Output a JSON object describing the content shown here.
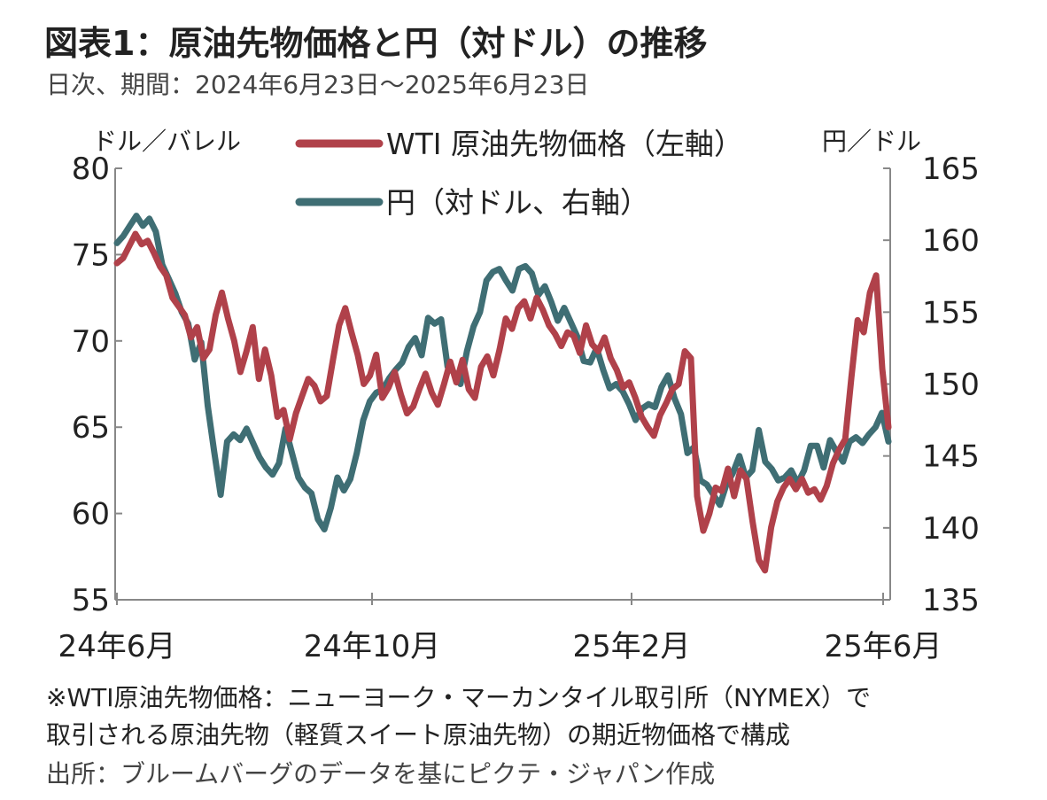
{
  "header": {
    "title": "図表1：原油先物価格と円（対ドル）の推移",
    "subtitle": "日次、期間：2024年6月23日～2025年6月23日"
  },
  "units": {
    "left": "ドル／バレル",
    "right": "円／ドル"
  },
  "notes": {
    "line1": "※WTI原油先物価格：ニューヨーク・マーカンタイル取引所（NYMEX）で",
    "line2": "取引される原油先物（軽質スイート原油先物）の期近物価格で構成",
    "line3": "出所：ブルームバーグのデータを基にピクテ・ジャパン作成"
  },
  "colors": {
    "wti": "#b0414a",
    "jpy": "#3f6e74",
    "axis": "#888888"
  },
  "chart_data": {
    "type": "line",
    "x_ticks": [
      "24年6月",
      "24年10月",
      "25年2月",
      "25年6月"
    ],
    "y_left": {
      "ticks": [
        80,
        75,
        70,
        65,
        60,
        55
      ],
      "lim": [
        55,
        80
      ]
    },
    "y_right": {
      "ticks": [
        165,
        160,
        155,
        150,
        145,
        140,
        135
      ],
      "lim": [
        135,
        165
      ]
    },
    "series": [
      {
        "name": "WTI 原油先物価格（左軸）",
        "axis": "left",
        "values": [
          74.5,
          74.8,
          75.5,
          76.2,
          75.6,
          75.8,
          75.1,
          74.3,
          73.8,
          72.5,
          72.0,
          71.5,
          70.2,
          70.8,
          69.0,
          69.5,
          71.5,
          72.8,
          71.3,
          70.0,
          68.2,
          69.4,
          70.8,
          67.8,
          69.5,
          68.0,
          65.6,
          66.0,
          64.3,
          65.8,
          66.8,
          67.8,
          67.4,
          66.5,
          66.8,
          68.9,
          70.9,
          71.9,
          70.5,
          69.2,
          67.5,
          68.0,
          69.2,
          66.7,
          67.3,
          68.2,
          66.9,
          65.8,
          66.2,
          67.2,
          68.1,
          67.0,
          66.3,
          67.5,
          68.8,
          67.6,
          68.9,
          67.2,
          66.7,
          68.5,
          69.1,
          68.0,
          69.5,
          71.3,
          70.7,
          71.9,
          72.3,
          71.3,
          72.5,
          71.8,
          70.9,
          70.4,
          69.7,
          70.5,
          70.3,
          69.3,
          70.9,
          69.8,
          69.4,
          70.2,
          69.0,
          68.3,
          67.3,
          67.6,
          66.7,
          65.6,
          65.0,
          64.5,
          65.7,
          66.4,
          67.2,
          67.5,
          69.4,
          69.0,
          61.0,
          59.0,
          60.0,
          61.5,
          61.3,
          62.6,
          61.0,
          62.5,
          62.0,
          59.5,
          57.3,
          56.7,
          59.2,
          60.7,
          61.5,
          62.0,
          61.4,
          62.0,
          61.2,
          61.4,
          60.8,
          61.6,
          62.9,
          63.7,
          64.3,
          67.9,
          71.2,
          70.5,
          72.8,
          73.8,
          68.4,
          65.0
        ]
      },
      {
        "name": "円（対ドル、右軸）",
        "axis": "right",
        "values": [
          159.8,
          160.3,
          161.0,
          161.7,
          161.0,
          161.5,
          160.6,
          158.3,
          157.3,
          156.3,
          155.0,
          154.2,
          151.7,
          152.9,
          148.5,
          145.3,
          142.3,
          146.0,
          146.5,
          146.1,
          146.9,
          145.9,
          144.9,
          144.2,
          143.7,
          144.5,
          146.9,
          145.2,
          143.5,
          142.8,
          142.4,
          140.6,
          139.9,
          141.4,
          143.5,
          142.6,
          143.4,
          145.2,
          147.5,
          148.8,
          149.4,
          149.6,
          150.4,
          151.0,
          151.5,
          152.6,
          153.2,
          152.0,
          154.6,
          154.2,
          154.5,
          151.2,
          150.8,
          150.0,
          152.3,
          154.0,
          155.0,
          157.2,
          157.8,
          158.0,
          157.2,
          156.5,
          158.0,
          158.2,
          157.7,
          156.2,
          156.8,
          155.7,
          154.4,
          155.3,
          154.3,
          153.3,
          151.6,
          151.5,
          152.5,
          151.0,
          149.7,
          150.0,
          149.5,
          148.6,
          147.5,
          148.3,
          148.6,
          148.4,
          149.8,
          150.6,
          149.0,
          147.9,
          145.2,
          145.6,
          143.3,
          143.0,
          142.3,
          141.6,
          143.0,
          143.8,
          145.0,
          143.5,
          144.0,
          146.8,
          144.6,
          144.1,
          143.3,
          143.5,
          144.0,
          143.1,
          144.0,
          145.7,
          145.7,
          144.2,
          146.1,
          145.3,
          144.6,
          146.0,
          146.3,
          145.9,
          146.5,
          147.0,
          148.0,
          146.0
        ]
      }
    ],
    "legend": [
      "WTI 原油先物価格（左軸）",
      "円（対ドル、右軸）"
    ]
  }
}
